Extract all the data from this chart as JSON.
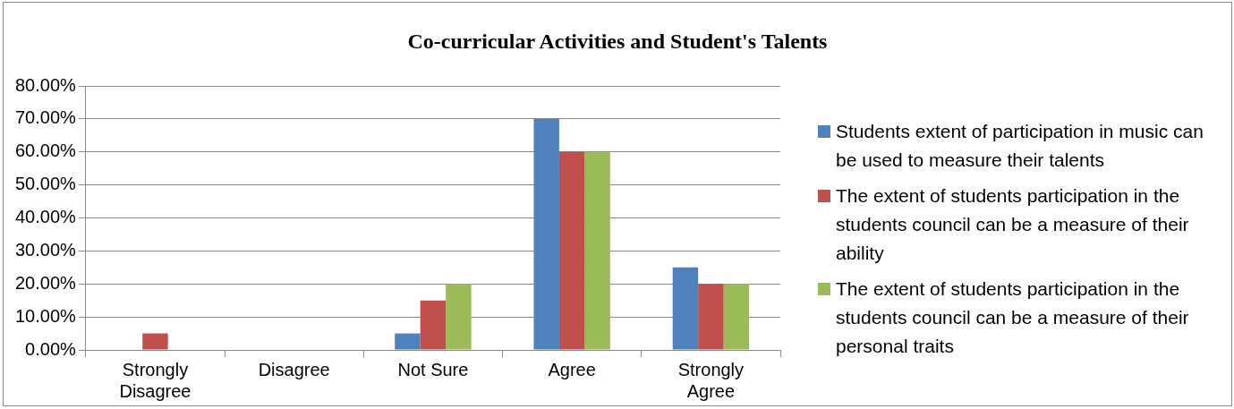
{
  "chart_data": {
    "type": "bar",
    "title": "Co-curricular Activities and Student's Talents",
    "categories": [
      "Strongly Disagree",
      "Disagree",
      "Not Sure",
      "Agree",
      "Strongly Agree"
    ],
    "series": [
      {
        "name": "Students extent of participation in music can be used to measure their talents",
        "color": "#4f81bd",
        "values": [
          0,
          0,
          5,
          70,
          25
        ]
      },
      {
        "name": "The extent of students participation in the students council can be a measure of their ability",
        "color": "#c0504d",
        "values": [
          5,
          0,
          15,
          60,
          20
        ]
      },
      {
        "name": "The extent of students participation in the students council can be a measure of their personal traits",
        "color": "#9bbb59",
        "values": [
          0,
          0,
          20,
          60,
          20
        ]
      }
    ],
    "ylim": [
      0,
      80
    ],
    "yticks": [
      {
        "value": 0,
        "label": "0.00%"
      },
      {
        "value": 10,
        "label": "10.00%"
      },
      {
        "value": 20,
        "label": "20.00%"
      },
      {
        "value": 30,
        "label": "30.00%"
      },
      {
        "value": 40,
        "label": "40.00%"
      },
      {
        "value": 50,
        "label": "50.00%"
      },
      {
        "value": 60,
        "label": "60.00%"
      },
      {
        "value": 70,
        "label": "70.00%"
      },
      {
        "value": 80,
        "label": "80.00%"
      }
    ],
    "grid": "y",
    "legend": "right"
  }
}
